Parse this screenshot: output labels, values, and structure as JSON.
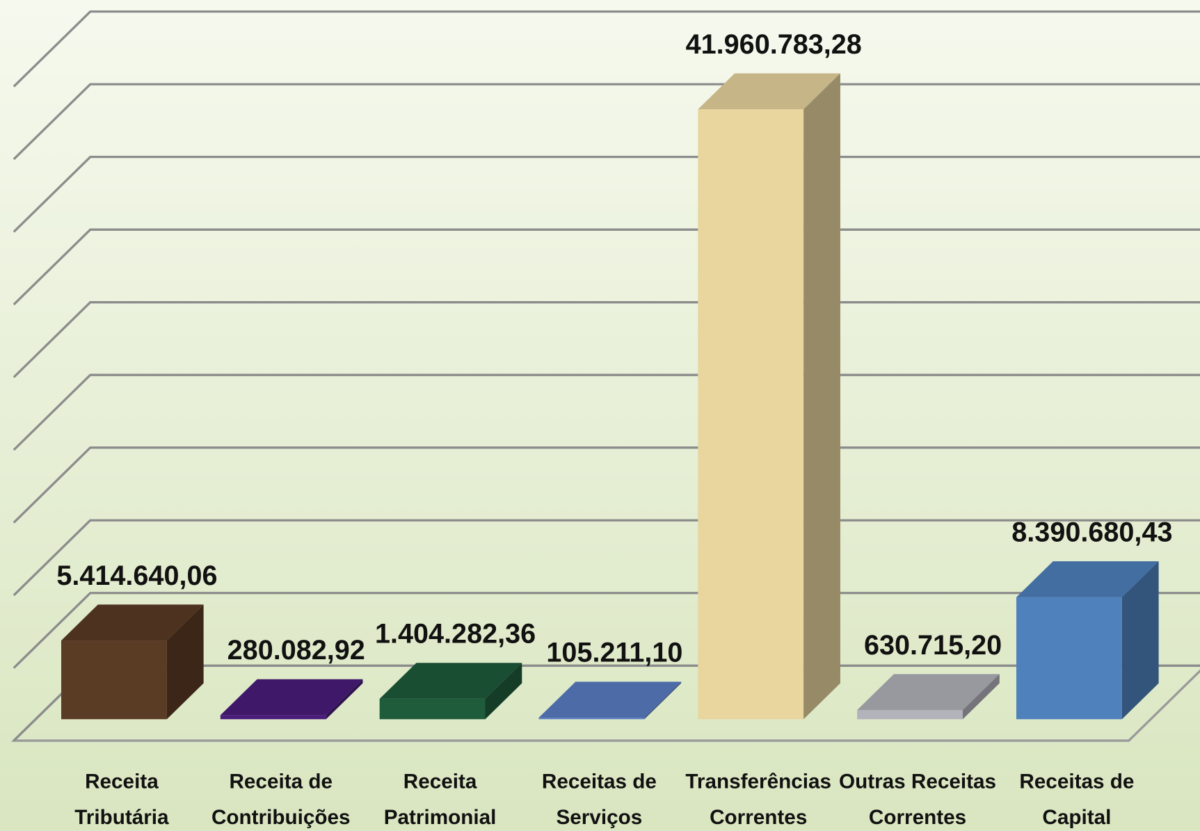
{
  "chart_data": {
    "type": "bar3d",
    "categories": [
      "Receita Tributária",
      "Receita de Contribuições",
      "Receita Patrimonial",
      "Receitas de Serviços",
      "Transferências Correntes",
      "Outras Receitas Correntes",
      "Receitas de Capital"
    ],
    "values": [
      5414640.06,
      280082.92,
      1404282.36,
      105211.1,
      41960783.28,
      630715.2,
      8390680.43
    ],
    "value_labels": [
      "5.414.640,06",
      "280.082,92",
      "1.404.282,36",
      "105.211,10",
      "41.960.783,28",
      "630.715,20",
      "8.390.680,43"
    ],
    "colors": [
      "#5a3b24",
      "#4a1c7c",
      "#1f5c3c",
      "#5b7fc4",
      "#e9d59e",
      "#b3b3bb",
      "#4f81bd"
    ],
    "ylim": [
      0,
      45000000
    ],
    "yticks": [
      0,
      5000000,
      10000000,
      15000000,
      20000000,
      25000000,
      30000000,
      35000000,
      40000000,
      45000000
    ],
    "grid": true
  }
}
